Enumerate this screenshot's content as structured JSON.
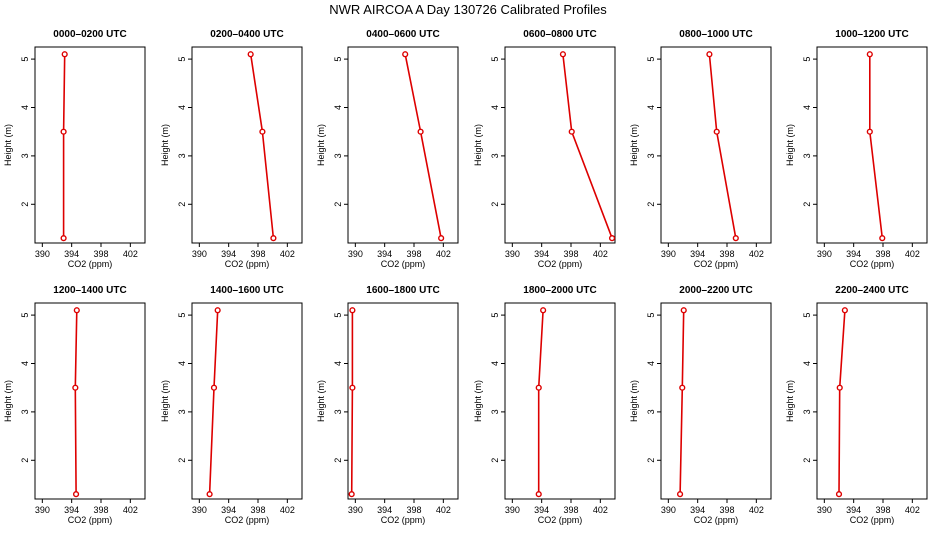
{
  "title": "NWR AIRCOA A  Day 130726  Calibrated Profiles",
  "colors": {
    "series": "#dd0000",
    "axis": "#000000"
  },
  "chart_data": [
    {
      "type": "line",
      "title": "0000–0200 UTC",
      "xlabel": "CO2 (ppm)",
      "ylabel": "Height (m)",
      "xlim": [
        389,
        404
      ],
      "ylim": [
        1.2,
        5.25
      ],
      "xticks": [
        "390",
        "394",
        "398",
        "402"
      ],
      "yticks": [
        "2",
        "3",
        "4",
        "5"
      ],
      "x": [
        393.05,
        392.9,
        392.9
      ],
      "y": [
        5.1,
        3.5,
        1.3
      ]
    },
    {
      "type": "line",
      "title": "0200–0400 UTC",
      "xlabel": "CO2 (ppm)",
      "ylabel": "Height (m)",
      "xlim": [
        389,
        404
      ],
      "ylim": [
        1.2,
        5.25
      ],
      "xticks": [
        "390",
        "394",
        "398",
        "402"
      ],
      "yticks": [
        "2",
        "3",
        "4",
        "5"
      ],
      "x": [
        397.0,
        398.6,
        400.1
      ],
      "y": [
        5.1,
        3.5,
        1.3
      ]
    },
    {
      "type": "line",
      "title": "0400–0600 UTC",
      "xlabel": "CO2 (ppm)",
      "ylabel": "Height (m)",
      "xlim": [
        389,
        404
      ],
      "ylim": [
        1.2,
        5.25
      ],
      "xticks": [
        "390",
        "394",
        "398",
        "402"
      ],
      "yticks": [
        "2",
        "3",
        "4",
        "5"
      ],
      "x": [
        396.8,
        398.9,
        401.7
      ],
      "y": [
        5.1,
        3.5,
        1.3
      ]
    },
    {
      "type": "line",
      "title": "0600–0800 UTC",
      "xlabel": "CO2 (ppm)",
      "ylabel": "Height (m)",
      "xlim": [
        389,
        404
      ],
      "ylim": [
        1.2,
        5.25
      ],
      "xticks": [
        "390",
        "394",
        "398",
        "402"
      ],
      "yticks": [
        "2",
        "3",
        "4",
        "5"
      ],
      "x": [
        396.9,
        398.1,
        403.6
      ],
      "y": [
        5.1,
        3.5,
        1.3
      ]
    },
    {
      "type": "line",
      "title": "0800–1000 UTC",
      "xlabel": "CO2 (ppm)",
      "ylabel": "Height (m)",
      "xlim": [
        389,
        404
      ],
      "ylim": [
        1.2,
        5.25
      ],
      "xticks": [
        "390",
        "394",
        "398",
        "402"
      ],
      "yticks": [
        "2",
        "3",
        "4",
        "5"
      ],
      "x": [
        395.6,
        396.6,
        399.2
      ],
      "y": [
        5.1,
        3.5,
        1.3
      ]
    },
    {
      "type": "line",
      "title": "1000–1200 UTC",
      "xlabel": "CO2 (ppm)",
      "ylabel": "Height (m)",
      "xlim": [
        389,
        404
      ],
      "ylim": [
        1.2,
        5.25
      ],
      "xticks": [
        "390",
        "394",
        "398",
        "402"
      ],
      "yticks": [
        "2",
        "3",
        "4",
        "5"
      ],
      "x": [
        396.2,
        396.2,
        397.9
      ],
      "y": [
        5.1,
        3.5,
        1.3
      ]
    },
    {
      "type": "line",
      "title": "1200–1400 UTC",
      "xlabel": "CO2 (ppm)",
      "ylabel": "Height (m)",
      "xlim": [
        389,
        404
      ],
      "ylim": [
        1.2,
        5.25
      ],
      "xticks": [
        "390",
        "394",
        "398",
        "402"
      ],
      "yticks": [
        "2",
        "3",
        "4",
        "5"
      ],
      "x": [
        394.7,
        394.5,
        394.6
      ],
      "y": [
        5.1,
        3.5,
        1.3
      ]
    },
    {
      "type": "line",
      "title": "1400–1600 UTC",
      "xlabel": "CO2 (ppm)",
      "ylabel": "Height (m)",
      "xlim": [
        389,
        404
      ],
      "ylim": [
        1.2,
        5.25
      ],
      "xticks": [
        "390",
        "394",
        "398",
        "402"
      ],
      "yticks": [
        "2",
        "3",
        "4",
        "5"
      ],
      "x": [
        392.5,
        392.0,
        391.4
      ],
      "y": [
        5.1,
        3.5,
        1.3
      ]
    },
    {
      "type": "line",
      "title": "1600–1800 UTC",
      "xlabel": "CO2 (ppm)",
      "ylabel": "Height (m)",
      "xlim": [
        389,
        404
      ],
      "ylim": [
        1.2,
        5.25
      ],
      "xticks": [
        "390",
        "394",
        "398",
        "402"
      ],
      "yticks": [
        "2",
        "3",
        "4",
        "5"
      ],
      "x": [
        389.6,
        389.6,
        389.5
      ],
      "y": [
        5.1,
        3.5,
        1.3
      ]
    },
    {
      "type": "line",
      "title": "1800–2000 UTC",
      "xlabel": "CO2 (ppm)",
      "ylabel": "Height (m)",
      "xlim": [
        389,
        404
      ],
      "ylim": [
        1.2,
        5.25
      ],
      "xticks": [
        "390",
        "394",
        "398",
        "402"
      ],
      "yticks": [
        "2",
        "3",
        "4",
        "5"
      ],
      "x": [
        394.2,
        393.6,
        393.6
      ],
      "y": [
        5.1,
        3.5,
        1.3
      ]
    },
    {
      "type": "line",
      "title": "2000–2200 UTC",
      "xlabel": "CO2 (ppm)",
      "ylabel": "Height (m)",
      "xlim": [
        389,
        404
      ],
      "ylim": [
        1.2,
        5.25
      ],
      "xticks": [
        "390",
        "394",
        "398",
        "402"
      ],
      "yticks": [
        "2",
        "3",
        "4",
        "5"
      ],
      "x": [
        392.1,
        391.9,
        391.6
      ],
      "y": [
        5.1,
        3.5,
        1.3
      ]
    },
    {
      "type": "line",
      "title": "2200–2400 UTC",
      "xlabel": "CO2 (ppm)",
      "ylabel": "Height (m)",
      "xlim": [
        389,
        404
      ],
      "ylim": [
        1.2,
        5.25
      ],
      "xticks": [
        "390",
        "394",
        "398",
        "402"
      ],
      "yticks": [
        "2",
        "3",
        "4",
        "5"
      ],
      "x": [
        392.8,
        392.1,
        392.0
      ],
      "y": [
        5.1,
        3.5,
        1.3
      ]
    }
  ]
}
